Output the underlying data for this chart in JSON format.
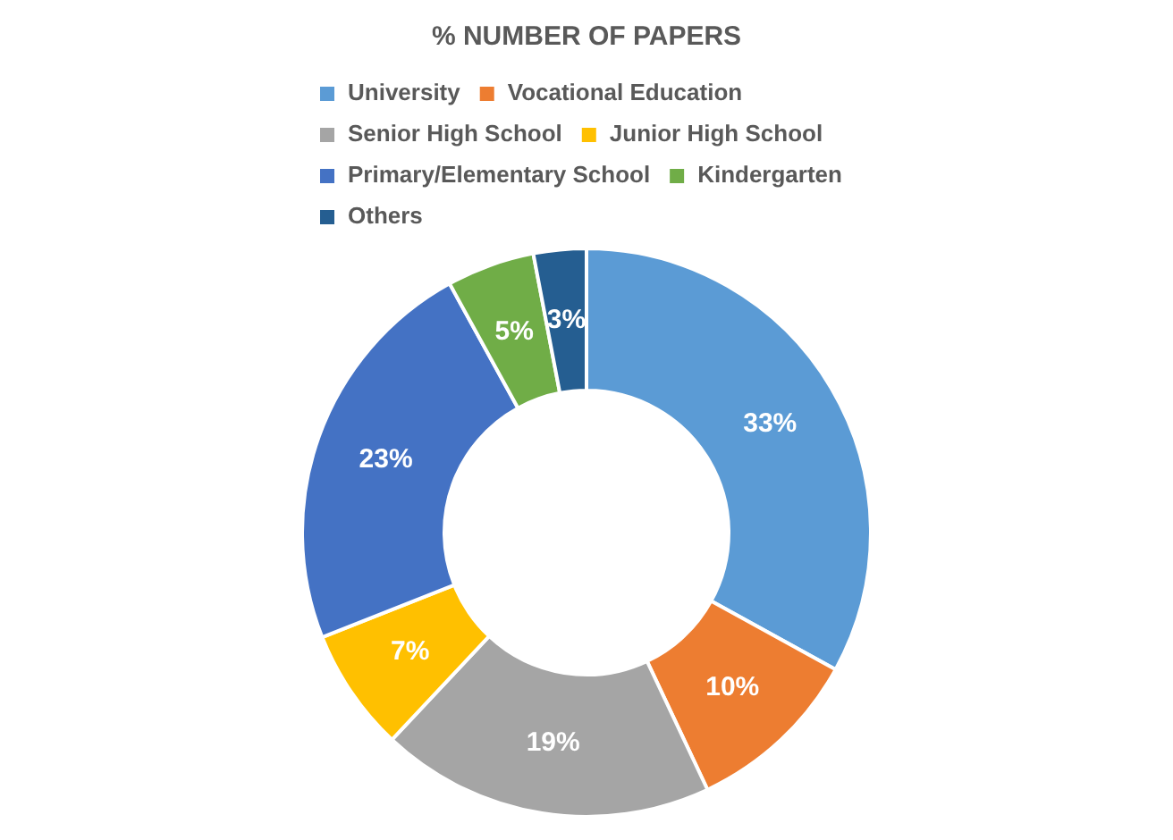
{
  "chart_data": {
    "type": "donut",
    "title": "% NUMBER OF PAPERS",
    "categories": [
      "University",
      "Vocational Education",
      "Senior High School",
      "Junior High School",
      "Primary/Elementary School",
      "Kindergarten",
      "Others"
    ],
    "values": [
      33,
      10,
      19,
      7,
      23,
      5,
      3
    ],
    "colors": [
      "#5b9bd5",
      "#ed7d31",
      "#a5a5a5",
      "#ffc000",
      "#4472c4",
      "#70ad47",
      "#255e91"
    ],
    "value_labels": [
      "33%",
      "10%",
      "19%",
      "7%",
      "23%",
      "5%",
      "3%"
    ],
    "legend": "top"
  }
}
